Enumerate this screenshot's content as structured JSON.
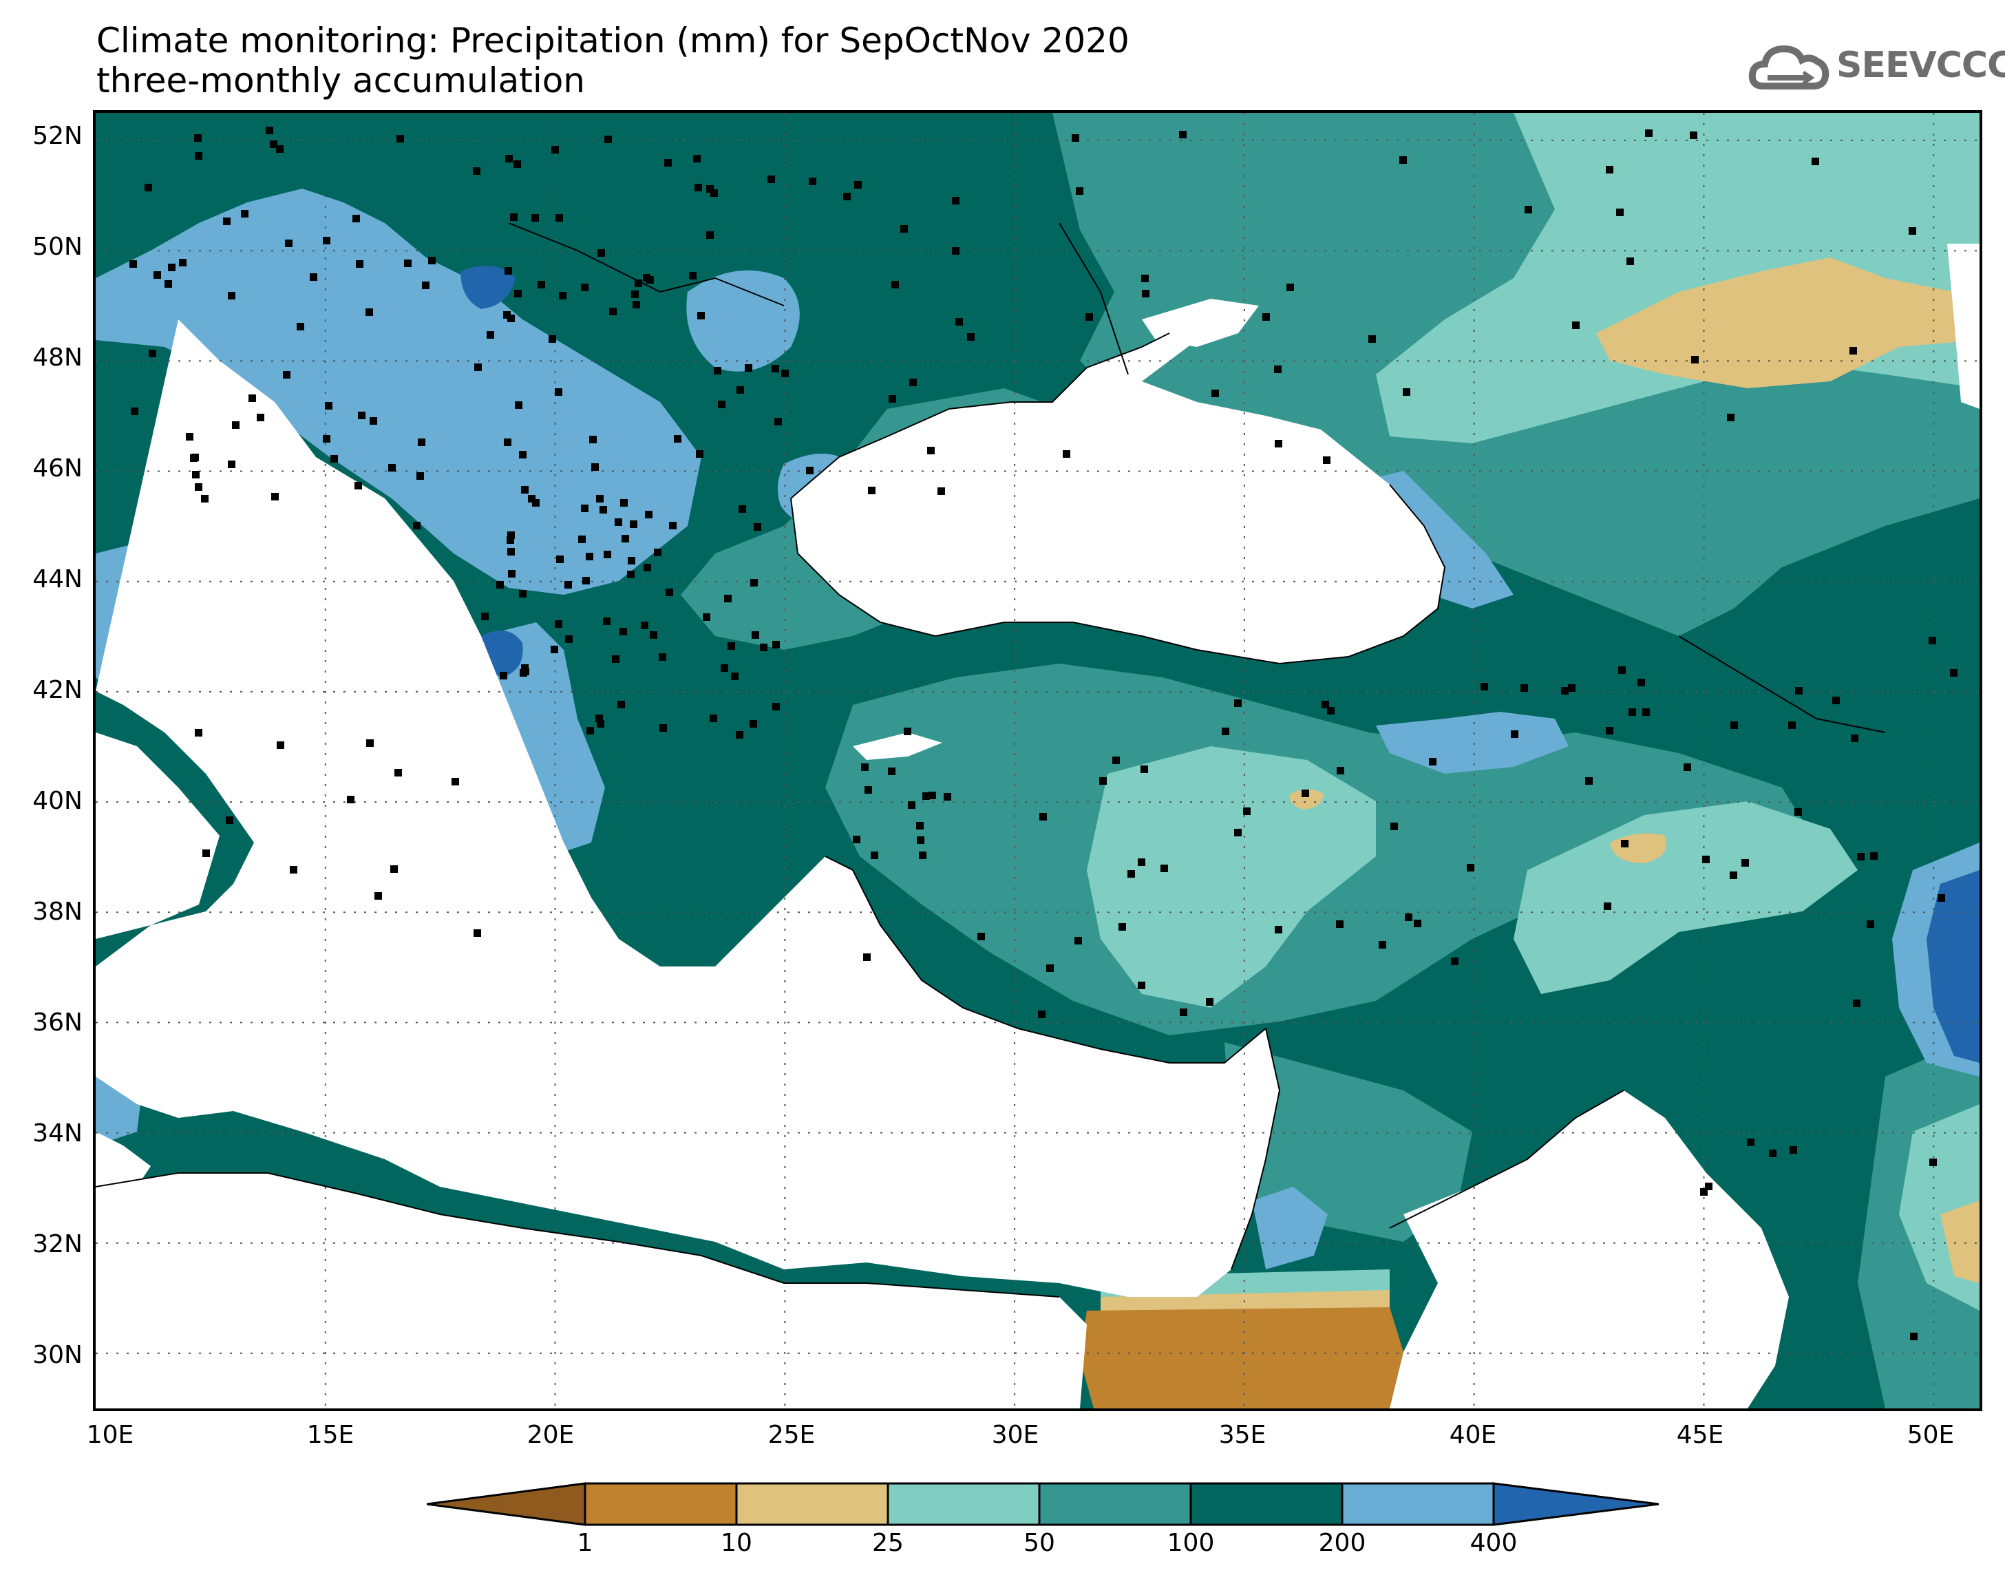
{
  "title": {
    "line1": "Climate monitoring: Precipitation (mm) for SepOctNov 2020",
    "line2": "three-monthly accumulation"
  },
  "logo": {
    "text": "SEEVCCC",
    "icon": "cloud-icon"
  },
  "map": {
    "lon_range": [
      10,
      51
    ],
    "lat_range": [
      29,
      52.5
    ],
    "lat_ticks": [
      "52N",
      "50N",
      "48N",
      "46N",
      "44N",
      "42N",
      "40N",
      "38N",
      "36N",
      "34N",
      "32N",
      "30N"
    ],
    "lon_ticks": [
      "10E",
      "15E",
      "20E",
      "25E",
      "30E",
      "35E",
      "40E",
      "45E",
      "50E"
    ],
    "gridlines": "dotted"
  },
  "colorbar": {
    "labels": [
      "1",
      "10",
      "25",
      "50",
      "100",
      "200",
      "400"
    ],
    "colors": [
      "#8e5a1e",
      "#bf822f",
      "#dfc27d",
      "#80cdc1",
      "#35978f",
      "#01665e",
      "#6aaed6",
      "#2166ac"
    ]
  }
}
